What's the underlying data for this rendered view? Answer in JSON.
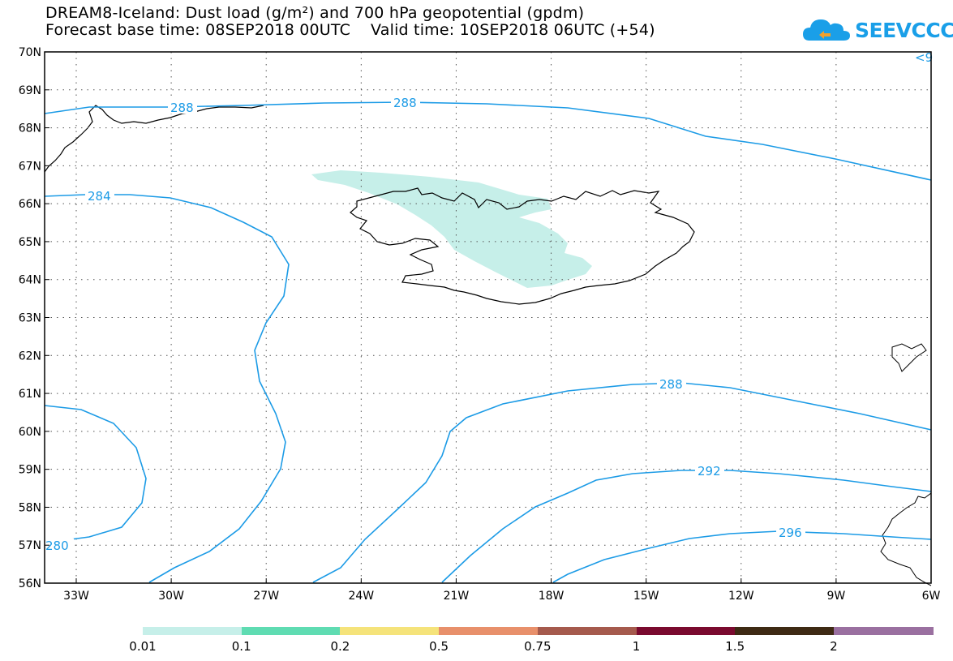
{
  "header": {
    "title_line1": "DREAM8-Iceland: Dust load (g/m²) and 700 hPa geopotential (gpdm)",
    "title_line2": "Forecast base time: 08SEP2018 00UTC    Valid time: 10SEP2018 06UTC (+54)"
  },
  "logo": {
    "text": "SEEVCCC",
    "icon": "cloud-logo-icon",
    "color": "#1a9fe8"
  },
  "map": {
    "lat_labels": [
      "56N",
      "57N",
      "58N",
      "59N",
      "60N",
      "61N",
      "62N",
      "63N",
      "64N",
      "65N",
      "66N",
      "67N",
      "68N",
      "69N",
      "70N"
    ],
    "lon_labels": [
      "33W",
      "30W",
      "27W",
      "24W",
      "21W",
      "18W",
      "15W",
      "12W",
      "9W",
      "6W"
    ],
    "contour_labels": [
      {
        "text": "288"
      },
      {
        "text": "288"
      },
      {
        "text": "284"
      },
      {
        "text": "288"
      },
      {
        "text": "292"
      },
      {
        "text": "296"
      },
      {
        "text": "280"
      },
      {
        "text": "<9"
      }
    ],
    "contour_color": "#1c9be6",
    "dust_color": "#c6efe9"
  },
  "legend": {
    "labels": [
      "0.01",
      "0.1",
      "0.2",
      "0.5",
      "0.75",
      "1",
      "1.5",
      "2"
    ],
    "colors": [
      "#c6efe9",
      "#5fdcb2",
      "#f5e37a",
      "#e8906b",
      "#a55a4d",
      "#7a0a2f",
      "#3e2a14",
      "#9a70a0"
    ]
  }
}
